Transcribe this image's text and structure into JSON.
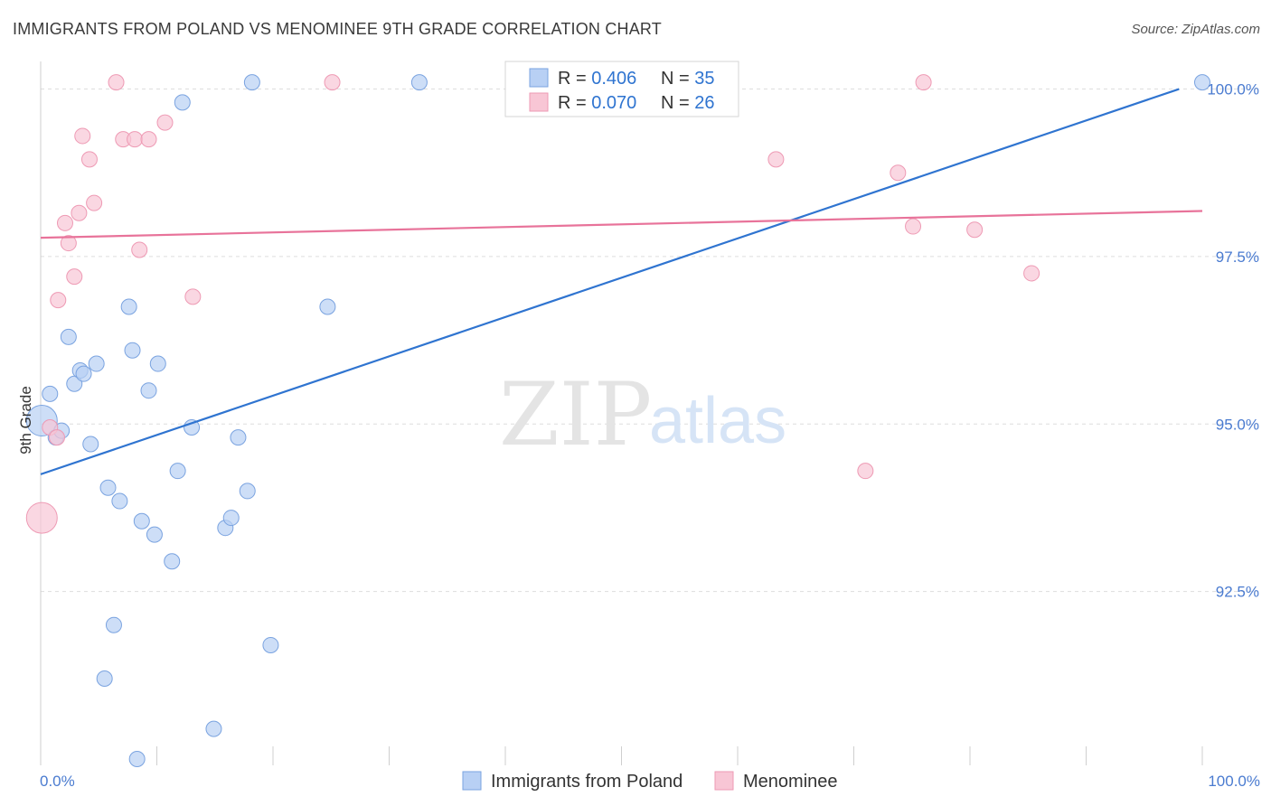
{
  "title": "IMMIGRANTS FROM POLAND VS MENOMINEE 9TH GRADE CORRELATION CHART",
  "source": "Source: ZipAtlas.com",
  "watermark": {
    "zip": "ZIP",
    "atlas": "atlas"
  },
  "colors": {
    "blue_fill": "#b8d0f4",
    "blue_stroke": "#7aa3e0",
    "blue_line": "#2f74d0",
    "pink_fill": "#f8c6d5",
    "pink_stroke": "#ee9ab4",
    "pink_line": "#e8739a",
    "tick_text": "#4a7bd0",
    "grid": "#dddddd"
  },
  "legend_top": {
    "rows": [
      {
        "r_label": "R = ",
        "r_value": "0.406",
        "n_label": "N = ",
        "n_value": "35",
        "series": "blue"
      },
      {
        "r_label": "R = ",
        "r_value": "0.070",
        "n_label": "N = ",
        "n_value": "26",
        "series": "pink"
      }
    ]
  },
  "legend_bottom": [
    {
      "label": "Immigrants from Poland",
      "series": "blue"
    },
    {
      "label": "Menominee",
      "series": "pink"
    }
  ],
  "chart_data": {
    "type": "scatter",
    "title": "IMMIGRANTS FROM POLAND VS MENOMINEE 9TH GRADE CORRELATION CHART",
    "xlabel": "",
    "ylabel": "9th Grade",
    "xlim": [
      0,
      100
    ],
    "ylim": [
      90.0,
      100.25
    ],
    "x_tick_labels": [
      {
        "value": 0,
        "label": "0.0%"
      },
      {
        "value": 100,
        "label": "100.0%"
      }
    ],
    "y_tick_labels": [
      {
        "value": 100.0,
        "label": "100.0%"
      },
      {
        "value": 97.5,
        "label": "97.5%"
      },
      {
        "value": 95.0,
        "label": "95.0%"
      },
      {
        "value": 92.5,
        "label": "92.5%"
      }
    ],
    "grid": true,
    "series": [
      {
        "name": "Immigrants from Poland",
        "color": "blue",
        "trend": {
          "x": [
            0,
            98
          ],
          "y": [
            94.25,
            100.0
          ]
        },
        "points": [
          {
            "x": 0.1,
            "y": 95.05,
            "big": true
          },
          {
            "x": 0.8,
            "y": 95.45
          },
          {
            "x": 1.3,
            "y": 94.8
          },
          {
            "x": 1.8,
            "y": 94.9
          },
          {
            "x": 2.4,
            "y": 96.3
          },
          {
            "x": 2.9,
            "y": 95.6
          },
          {
            "x": 3.4,
            "y": 95.8
          },
          {
            "x": 3.7,
            "y": 95.75
          },
          {
            "x": 4.3,
            "y": 94.7
          },
          {
            "x": 4.8,
            "y": 95.9
          },
          {
            "x": 5.5,
            "y": 91.2
          },
          {
            "x": 5.8,
            "y": 94.05
          },
          {
            "x": 6.3,
            "y": 92.0
          },
          {
            "x": 6.8,
            "y": 93.85
          },
          {
            "x": 7.6,
            "y": 96.75
          },
          {
            "x": 7.9,
            "y": 96.1
          },
          {
            "x": 8.3,
            "y": 90.0
          },
          {
            "x": 8.7,
            "y": 93.55
          },
          {
            "x": 9.3,
            "y": 95.5
          },
          {
            "x": 9.8,
            "y": 93.35
          },
          {
            "x": 10.1,
            "y": 95.9
          },
          {
            "x": 11.3,
            "y": 92.95
          },
          {
            "x": 11.8,
            "y": 94.3
          },
          {
            "x": 12.2,
            "y": 99.8
          },
          {
            "x": 13.0,
            "y": 94.95
          },
          {
            "x": 14.9,
            "y": 90.45
          },
          {
            "x": 15.9,
            "y": 93.45
          },
          {
            "x": 16.4,
            "y": 93.6
          },
          {
            "x": 17.0,
            "y": 94.8
          },
          {
            "x": 17.8,
            "y": 94.0
          },
          {
            "x": 18.2,
            "y": 100.1
          },
          {
            "x": 19.8,
            "y": 91.7
          },
          {
            "x": 24.7,
            "y": 96.75
          },
          {
            "x": 32.6,
            "y": 100.1
          },
          {
            "x": 100.0,
            "y": 100.1
          }
        ]
      },
      {
        "name": "Menominee",
        "color": "pink",
        "trend": {
          "x": [
            0,
            100
          ],
          "y": [
            97.78,
            98.18
          ]
        },
        "points": [
          {
            "x": 0.1,
            "y": 93.6,
            "big": true
          },
          {
            "x": 0.8,
            "y": 94.95
          },
          {
            "x": 1.4,
            "y": 94.8
          },
          {
            "x": 1.5,
            "y": 96.85
          },
          {
            "x": 2.1,
            "y": 98.0
          },
          {
            "x": 2.4,
            "y": 97.7
          },
          {
            "x": 2.9,
            "y": 97.2
          },
          {
            "x": 3.3,
            "y": 98.15
          },
          {
            "x": 3.6,
            "y": 99.3
          },
          {
            "x": 4.2,
            "y": 98.95
          },
          {
            "x": 4.6,
            "y": 98.3
          },
          {
            "x": 6.5,
            "y": 100.1
          },
          {
            "x": 7.1,
            "y": 99.25
          },
          {
            "x": 8.1,
            "y": 99.25
          },
          {
            "x": 8.5,
            "y": 97.6
          },
          {
            "x": 9.3,
            "y": 99.25
          },
          {
            "x": 10.7,
            "y": 99.5
          },
          {
            "x": 13.1,
            "y": 96.9
          },
          {
            "x": 25.1,
            "y": 100.1
          },
          {
            "x": 63.3,
            "y": 98.95
          },
          {
            "x": 71.0,
            "y": 94.3
          },
          {
            "x": 73.8,
            "y": 98.75
          },
          {
            "x": 75.1,
            "y": 97.95
          },
          {
            "x": 76.0,
            "y": 100.1
          },
          {
            "x": 80.4,
            "y": 97.9
          },
          {
            "x": 85.3,
            "y": 97.25
          }
        ]
      }
    ]
  }
}
